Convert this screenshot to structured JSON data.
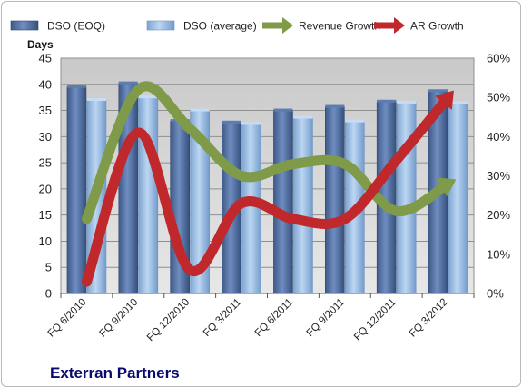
{
  "company": "Exterran Partners",
  "chart_data": {
    "type": "bar",
    "categories": [
      "FQ 6/2010",
      "FQ 9/2010",
      "FQ 12/2010",
      "FQ 3/2011",
      "FQ 6/2011",
      "FQ 9/2011",
      "FQ 12/2011",
      "FQ 3/2012"
    ],
    "ylabel": "Days",
    "ylim": [
      0,
      45
    ],
    "y_ticks": [
      0,
      5,
      10,
      15,
      20,
      25,
      30,
      35,
      40,
      45
    ],
    "y2lim": [
      0,
      0.6
    ],
    "y2_ticks": [
      "0%",
      "10%",
      "20%",
      "30%",
      "40%",
      "50%",
      "60%"
    ],
    "legend_position": "top",
    "series": [
      {
        "name": "DSO (EOQ)",
        "type": "bar",
        "axis": "left",
        "color": "#4f6b9c",
        "values": [
          39.5,
          40.2,
          33.0,
          32.7,
          35.0,
          35.7,
          36.7,
          38.7
        ]
      },
      {
        "name": "DSO (average)",
        "type": "bar",
        "axis": "left",
        "color": "#93b8e0",
        "values": [
          37.0,
          37.5,
          35.0,
          32.4,
          33.6,
          32.9,
          36.5,
          36.4
        ]
      },
      {
        "name": "Revenue Growth",
        "type": "line",
        "axis": "right",
        "color": "#7f9a48",
        "values": [
          0.19,
          0.52,
          0.42,
          0.3,
          0.33,
          0.33,
          0.21,
          0.28
        ]
      },
      {
        "name": "AR Growth",
        "type": "line",
        "axis": "right",
        "color": "#c0282b",
        "values": [
          0.03,
          0.41,
          0.06,
          0.23,
          0.19,
          0.19,
          0.34,
          0.5
        ]
      }
    ]
  }
}
